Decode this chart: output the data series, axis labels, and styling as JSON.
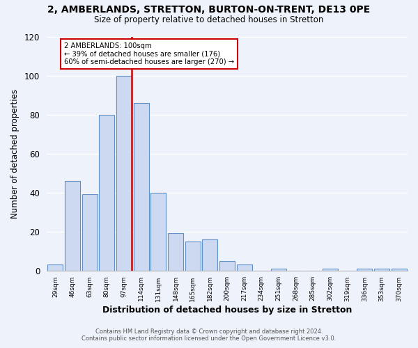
{
  "title": "2, AMBERLANDS, STRETTON, BURTON-ON-TRENT, DE13 0PE",
  "subtitle": "Size of property relative to detached houses in Stretton",
  "xlabel": "Distribution of detached houses by size in Stretton",
  "ylabel": "Number of detached properties",
  "bar_labels": [
    "29sqm",
    "46sqm",
    "63sqm",
    "80sqm",
    "97sqm",
    "114sqm",
    "131sqm",
    "148sqm",
    "165sqm",
    "182sqm",
    "200sqm",
    "217sqm",
    "234sqm",
    "251sqm",
    "268sqm",
    "285sqm",
    "302sqm",
    "319sqm",
    "336sqm",
    "353sqm",
    "370sqm"
  ],
  "bar_values": [
    3,
    46,
    39,
    80,
    100,
    86,
    40,
    19,
    15,
    16,
    5,
    3,
    0,
    1,
    0,
    0,
    1,
    0,
    1,
    1,
    1
  ],
  "bar_color": "#ccd9f0",
  "bar_edge_color": "#6090c8",
  "ylim": [
    0,
    120
  ],
  "yticks": [
    0,
    20,
    40,
    60,
    80,
    100,
    120
  ],
  "vline_x_index": 4,
  "marker_label": "2 AMBERLANDS: 100sqm",
  "annotation_line1": "← 39% of detached houses are smaller (176)",
  "annotation_line2": "60% of semi-detached houses are larger (270) →",
  "annotation_box_color": "#ffffff",
  "annotation_box_edge": "#cc0000",
  "vline_color": "#cc0000",
  "background_color": "#eef2fa",
  "grid_color": "#ffffff",
  "footer_line1": "Contains HM Land Registry data © Crown copyright and database right 2024.",
  "footer_line2": "Contains public sector information licensed under the Open Government Licence v3.0."
}
